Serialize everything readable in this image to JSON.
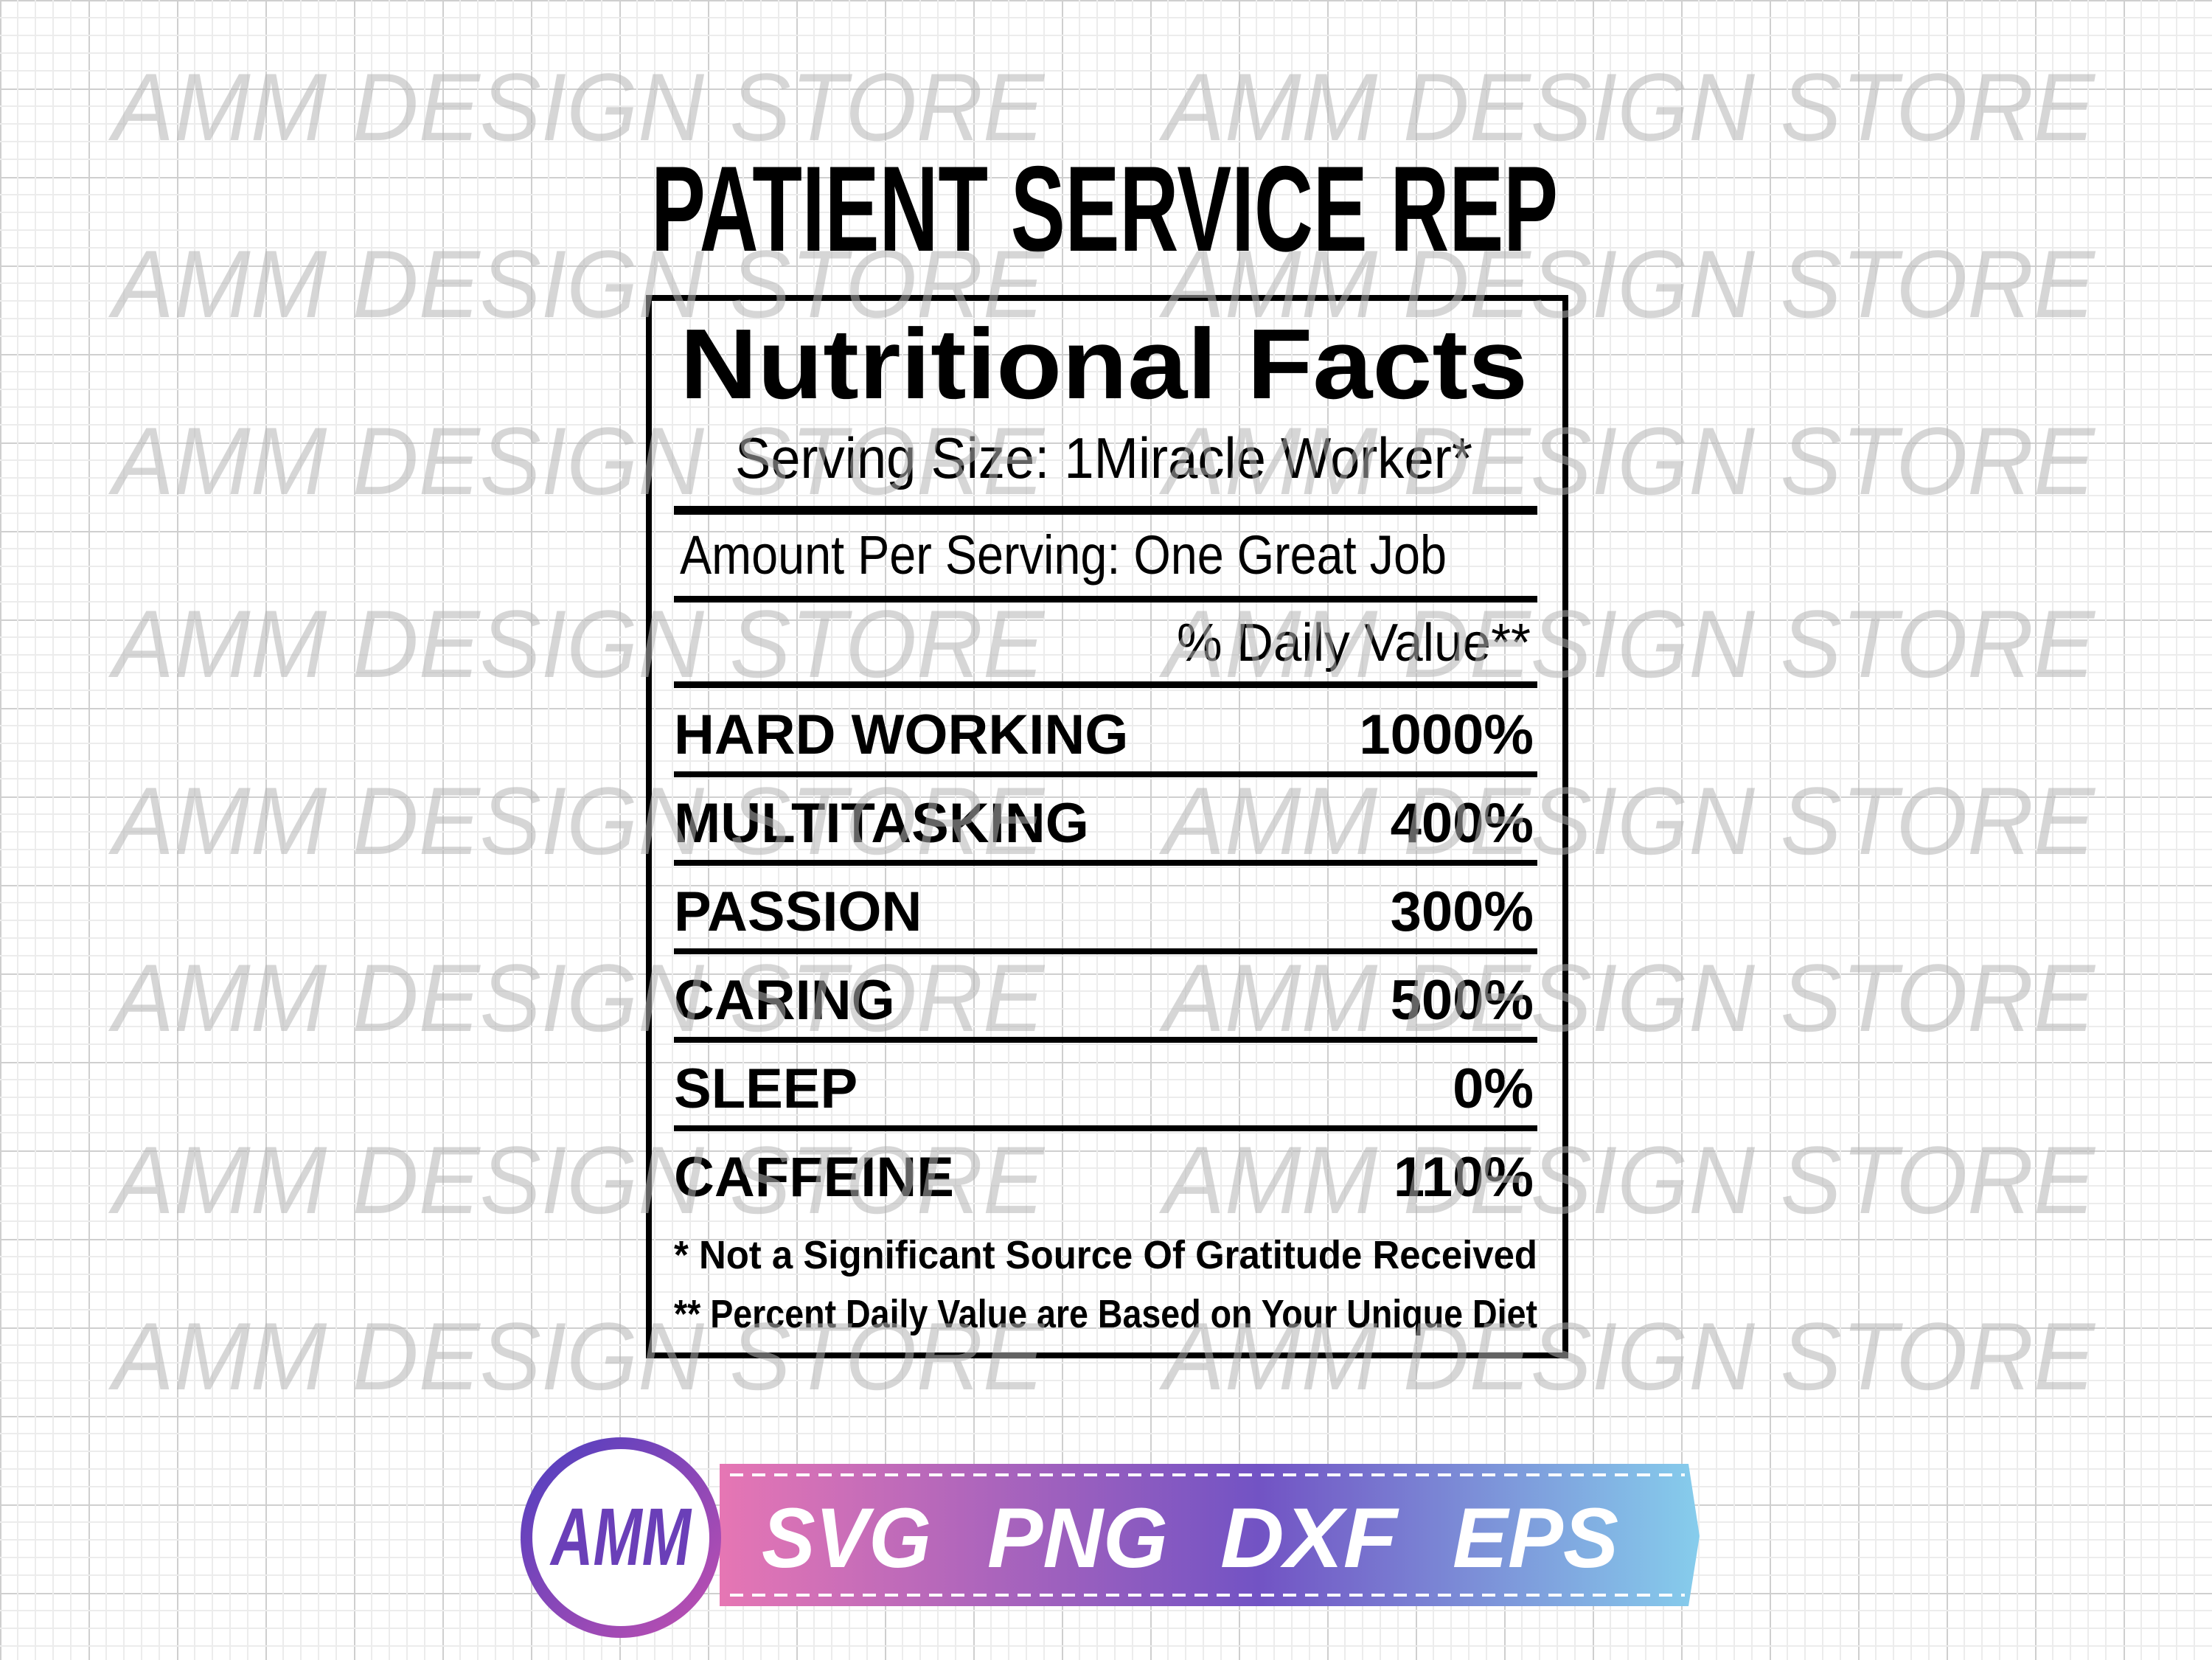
{
  "title": "PATIENT SERVICE REP",
  "watermark": "AMM DESIGN STORE",
  "label": {
    "heading": "Nutritional Facts",
    "serving_size": "Serving Size: 1Miracle Worker*",
    "amount": "Amount Per Serving: One Great Job",
    "daily_value_header": "% Daily Value**",
    "rows": [
      {
        "name": "HARD WORKING",
        "value": "1000%"
      },
      {
        "name": "MULTITASKING",
        "value": "400%"
      },
      {
        "name": "PASSION",
        "value": "300%"
      },
      {
        "name": "CARING",
        "value": "500%"
      },
      {
        "name": "SLEEP",
        "value": "0%"
      },
      {
        "name": "CAFFEINE",
        "value": "110%"
      }
    ],
    "footnotes": [
      "* Not a Significant Source Of Gratitude Received",
      "** Percent Daily Value are Based on Your Unique Diet"
    ]
  },
  "badge": {
    "logo": "AMM",
    "formats": [
      "SVG",
      "PNG",
      "DXF",
      "EPS"
    ]
  }
}
